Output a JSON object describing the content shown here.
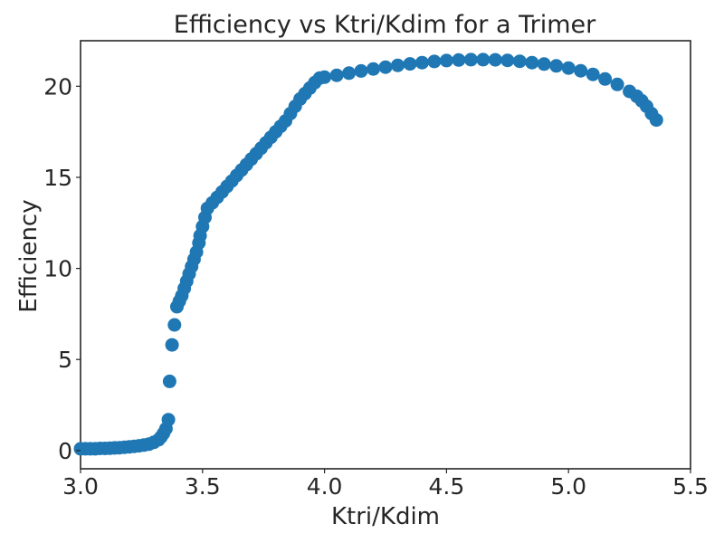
{
  "chart_data": {
    "type": "scatter",
    "title": "Efficiency vs Ktri/Kdim for a Trimer",
    "xlabel": "Ktri/Kdim",
    "ylabel": "Efficiency",
    "xlim": [
      3.0,
      5.5
    ],
    "ylim": [
      -1.0,
      22.5
    ],
    "x_ticks": [
      3.0,
      3.5,
      4.0,
      4.5,
      5.0,
      5.5
    ],
    "x_tick_labels": [
      "3.0",
      "3.5",
      "4.0",
      "4.5",
      "5.0",
      "5.5"
    ],
    "y_ticks": [
      0,
      5,
      10,
      15,
      20
    ],
    "y_tick_labels": [
      "0",
      "5",
      "10",
      "15",
      "20"
    ],
    "grid": false,
    "marker_color": "#1f77b4",
    "points": [
      [
        3.0,
        0.1
      ],
      [
        3.02,
        0.1
      ],
      [
        3.04,
        0.1
      ],
      [
        3.06,
        0.1
      ],
      [
        3.08,
        0.12
      ],
      [
        3.1,
        0.12
      ],
      [
        3.12,
        0.13
      ],
      [
        3.14,
        0.15
      ],
      [
        3.16,
        0.16
      ],
      [
        3.18,
        0.18
      ],
      [
        3.2,
        0.2
      ],
      [
        3.22,
        0.23
      ],
      [
        3.24,
        0.26
      ],
      [
        3.26,
        0.3
      ],
      [
        3.28,
        0.35
      ],
      [
        3.3,
        0.45
      ],
      [
        3.32,
        0.6
      ],
      [
        3.33,
        0.75
      ],
      [
        3.34,
        0.95
      ],
      [
        3.35,
        1.2
      ],
      [
        3.36,
        1.7
      ],
      [
        3.365,
        3.8
      ],
      [
        3.375,
        5.8
      ],
      [
        3.385,
        6.9
      ],
      [
        3.395,
        7.9
      ],
      [
        3.405,
        8.2
      ],
      [
        3.415,
        8.5
      ],
      [
        3.425,
        8.9
      ],
      [
        3.435,
        9.3
      ],
      [
        3.445,
        9.7
      ],
      [
        3.455,
        10.1
      ],
      [
        3.465,
        10.5
      ],
      [
        3.475,
        10.9
      ],
      [
        3.485,
        11.4
      ],
      [
        3.49,
        11.8
      ],
      [
        3.5,
        12.3
      ],
      [
        3.51,
        12.8
      ],
      [
        3.52,
        13.3
      ],
      [
        3.54,
        13.6
      ],
      [
        3.56,
        13.9
      ],
      [
        3.58,
        14.2
      ],
      [
        3.6,
        14.5
      ],
      [
        3.62,
        14.8
      ],
      [
        3.64,
        15.1
      ],
      [
        3.66,
        15.4
      ],
      [
        3.68,
        15.7
      ],
      [
        3.7,
        16.0
      ],
      [
        3.72,
        16.3
      ],
      [
        3.74,
        16.6
      ],
      [
        3.76,
        16.9
      ],
      [
        3.78,
        17.2
      ],
      [
        3.8,
        17.5
      ],
      [
        3.82,
        17.8
      ],
      [
        3.84,
        18.1
      ],
      [
        3.86,
        18.5
      ],
      [
        3.88,
        18.9
      ],
      [
        3.9,
        19.3
      ],
      [
        3.92,
        19.6
      ],
      [
        3.94,
        19.9
      ],
      [
        3.96,
        20.2
      ],
      [
        3.98,
        20.45
      ],
      [
        4.0,
        20.5
      ],
      [
        4.05,
        20.6
      ],
      [
        4.1,
        20.72
      ],
      [
        4.15,
        20.84
      ],
      [
        4.2,
        20.95
      ],
      [
        4.25,
        21.05
      ],
      [
        4.3,
        21.15
      ],
      [
        4.35,
        21.23
      ],
      [
        4.4,
        21.3
      ],
      [
        4.45,
        21.36
      ],
      [
        4.5,
        21.41
      ],
      [
        4.55,
        21.44
      ],
      [
        4.6,
        21.46
      ],
      [
        4.65,
        21.46
      ],
      [
        4.7,
        21.45
      ],
      [
        4.75,
        21.42
      ],
      [
        4.8,
        21.37
      ],
      [
        4.85,
        21.3
      ],
      [
        4.9,
        21.22
      ],
      [
        4.95,
        21.12
      ],
      [
        5.0,
        21.0
      ],
      [
        5.05,
        20.85
      ],
      [
        5.1,
        20.65
      ],
      [
        5.15,
        20.4
      ],
      [
        5.2,
        20.1
      ],
      [
        5.25,
        19.72
      ],
      [
        5.28,
        19.45
      ],
      [
        5.3,
        19.2
      ],
      [
        5.32,
        18.9
      ],
      [
        5.34,
        18.5
      ],
      [
        5.36,
        18.15
      ]
    ]
  }
}
